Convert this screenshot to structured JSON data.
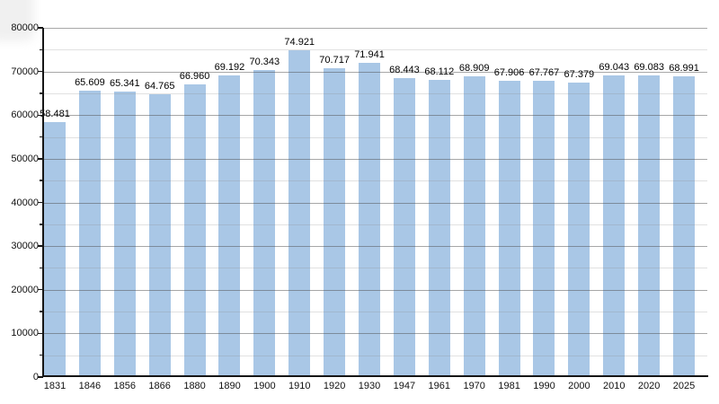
{
  "chart_data": {
    "type": "bar",
    "title": "",
    "xlabel": "",
    "ylabel": "",
    "categories": [
      "1831",
      "1846",
      "1856",
      "1866",
      "1880",
      "1890",
      "1900",
      "1910",
      "1920",
      "1930",
      "1947",
      "1961",
      "1970",
      "1981",
      "1990",
      "2000",
      "2010",
      "2020",
      "2025"
    ],
    "values": [
      58481,
      65609,
      65341,
      64765,
      66960,
      69192,
      70343,
      74921,
      70717,
      71941,
      68443,
      68112,
      68909,
      67906,
      67767,
      67379,
      69043,
      69083,
      68991
    ],
    "value_labels": [
      "58.481",
      "65.609",
      "65.341",
      "64.765",
      "66.960",
      "69.192",
      "70.343",
      "74.921",
      "70.717",
      "71.941",
      "68.443",
      "68.112",
      "68.909",
      "67.906",
      "67.767",
      "67.379",
      "69.043",
      "69.083",
      "68.991"
    ],
    "ylim": [
      0,
      80000
    ],
    "y_major_step": 10000,
    "y_minor_step": 5000,
    "y_tick_labels": [
      "0",
      "10000",
      "20000",
      "30000",
      "40000",
      "50000",
      "60000",
      "70000",
      "80000"
    ],
    "grid": "horizontal, major and minor, drawn over bars",
    "legend": "none",
    "bar_color": "#a9c7e6",
    "major_grid_color": "rgba(80,80,80,0.50)",
    "minor_grid_color": "rgba(140,140,140,0.26)",
    "axis_color": "#161616",
    "label_color": "#000000",
    "background": "#ffffff"
  }
}
